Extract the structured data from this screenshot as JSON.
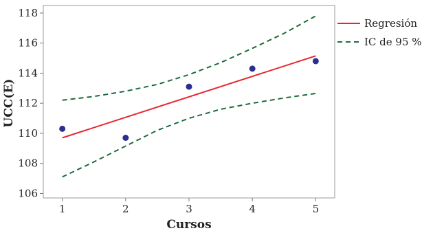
{
  "chart_data": {
    "type": "scatter",
    "xlabel": "Cursos",
    "ylabel": "UCC(E)",
    "x_ticks": [
      1,
      2,
      3,
      4,
      5
    ],
    "y_ticks": [
      106,
      108,
      110,
      112,
      114,
      116,
      118
    ],
    "xlim": [
      0.7,
      5.3
    ],
    "ylim": [
      105.7,
      118.5
    ],
    "grid": false,
    "legend_position": "top-right",
    "points": {
      "x": [
        1,
        2,
        3,
        4,
        5
      ],
      "y": [
        110.3,
        109.7,
        113.1,
        114.3,
        114.8
      ]
    },
    "regression": {
      "name": "Regresión",
      "color": "#e8262d",
      "x": [
        1,
        5
      ],
      "y": [
        109.7,
        115.15
      ]
    },
    "confidence_interval": {
      "name": "IC de 95 %",
      "color": "#1a6b3c",
      "x": [
        1,
        1.5,
        2,
        2.5,
        3,
        3.5,
        4,
        4.5,
        5
      ],
      "upper": [
        112.2,
        112.45,
        112.8,
        113.25,
        113.9,
        114.7,
        115.65,
        116.65,
        117.8
      ],
      "lower": [
        107.1,
        108.1,
        109.15,
        110.2,
        111.0,
        111.6,
        112.0,
        112.35,
        112.65
      ]
    },
    "point_color": "#2b2f8f"
  }
}
